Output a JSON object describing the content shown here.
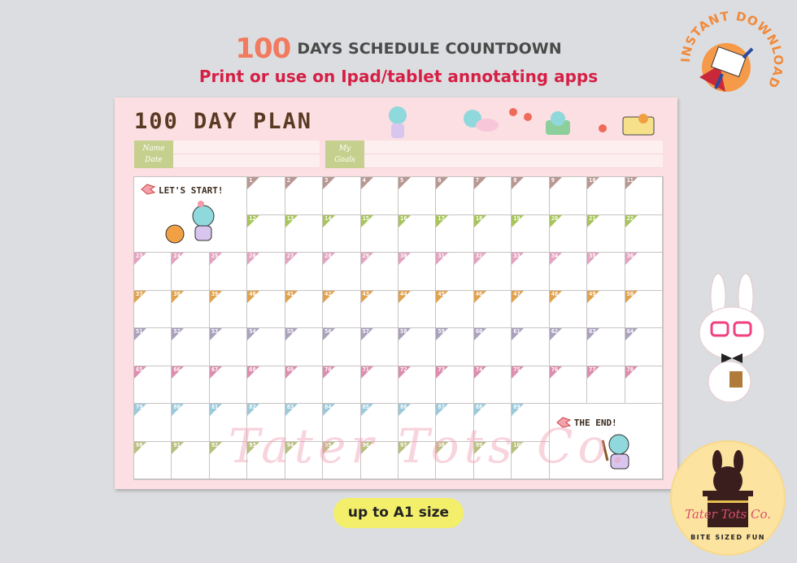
{
  "header": {
    "number": "100",
    "title_rest": "DAYS SCHEDULE COUNTDOWN",
    "subtitle": "Print or use on Ipad/tablet annotating apps"
  },
  "badge": {
    "text": "INSTANT DOWNLOAD",
    "icon": "flying-envelope-hero-icon"
  },
  "sheet": {
    "title": "100 DAY PLAN",
    "name_label": "Name",
    "date_label": "Date",
    "goals_label_1": "My",
    "goals_label_2": "Goals",
    "start_label": "LET'S START!",
    "end_label": "THE END!",
    "watermark": "Tater Tots Co.",
    "days": [
      1,
      2,
      3,
      4,
      5,
      6,
      7,
      8,
      9,
      10,
      11,
      12,
      13,
      14,
      15,
      16,
      17,
      18,
      19,
      20,
      21,
      22,
      23,
      24,
      25,
      26,
      27,
      28,
      29,
      30,
      31,
      32,
      33,
      34,
      35,
      36,
      37,
      38,
      39,
      40,
      41,
      42,
      43,
      44,
      45,
      46,
      47,
      48,
      49,
      50,
      51,
      52,
      53,
      54,
      55,
      56,
      57,
      58,
      59,
      60,
      61,
      62,
      63,
      64,
      65,
      66,
      67,
      68,
      69,
      70,
      71,
      72,
      73,
      74,
      75,
      76,
      77,
      78,
      79,
      80,
      81,
      82,
      83,
      84,
      85,
      86,
      87,
      88,
      89,
      90,
      91,
      92,
      93,
      94,
      95,
      96,
      97,
      98,
      99,
      100
    ],
    "row_colors": [
      "#b99893",
      "#a7c55a",
      "#e2a4c0",
      "#e0a24e",
      "#aaa1bd",
      "#dc8eae",
      "#9ccadb",
      "#b9c07f"
    ]
  },
  "size_pill": "up to A1 size",
  "logo": {
    "name": "Tater Tots Co.",
    "tagline": "BITE SIZED FUN"
  }
}
